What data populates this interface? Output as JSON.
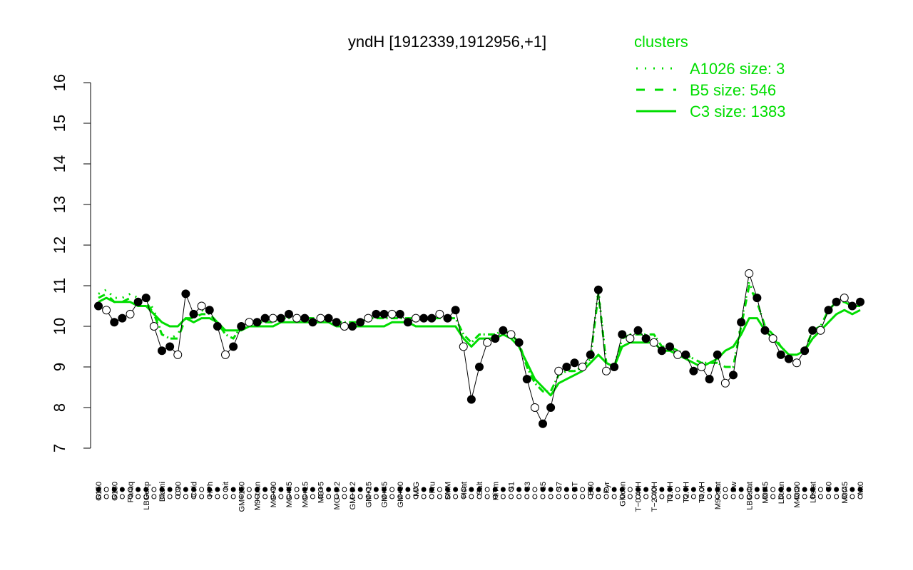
{
  "chart_data": {
    "type": "line",
    "title": "yndH [1912339,1912956,+1]",
    "xlabel": "",
    "ylabel": "",
    "ylim": [
      7,
      16
    ],
    "y_ticks": [
      "7",
      "8",
      "9",
      "10",
      "11",
      "12",
      "13",
      "14",
      "15",
      "16"
    ],
    "grid": false,
    "x_tick_labels": [
      "G150",
      "G135",
      "G180",
      "H2O2",
      "Paraq",
      "Oxctl",
      "LBGexp",
      "dia15",
      "Diami",
      "dia5",
      "C90",
      "C30",
      "Cold",
      "LPh",
      "HPh",
      "aero",
      "nit",
      "ferm",
      "GM+150",
      "MG+150",
      "M9–tran",
      "MG+120",
      "MG+90",
      "MG+60",
      "MG+45",
      "MG+25",
      "MG+15",
      "MG+10",
      "MG+5",
      "M9–exp",
      "MG−0.2",
      "Glucon",
      "GM−0.2",
      "GM+10",
      "GM+15",
      "GM+25",
      "GM+45",
      "GM+60",
      "GM+90",
      "GM+120",
      "M/G",
      "Mal",
      "Fru",
      "Glu",
      "SMM",
      "BMM",
      "Heat",
      "Etha",
      "Salt",
      "Gly",
      "HiTm",
      "HiOs",
      "S1",
      "S2",
      "S3",
      "S4",
      "S5",
      "S6",
      "S7",
      "S8",
      "BT",
      "B36",
      "B60",
      "LoTm",
      "Pyr",
      "G/S",
      "Glucon",
      "SMMPr",
      "T−0.40H",
      "T−1.10H",
      "T−2.40H",
      "T0.30H",
      "T1.0H",
      "T1.30H",
      "T2.0H",
      "T3.0H",
      "T4.0H",
      "T5.0H",
      "M9–stat",
      "BC",
      "Sw",
      "LPhT",
      "LBGstat",
      "LBGtran",
      "M0t45",
      "M40t45",
      "Lbtran",
      "Mt0",
      "M40t90",
      "M0t90",
      "Lbstat",
      "BI",
      "S0",
      "dia0",
      "M0t45",
      "Lbexp",
      "Mt0"
    ],
    "series": [
      {
        "name": "A1026 size: 3",
        "style": "dotted",
        "color": "#00dd00",
        "values": [
          10.8,
          10.9,
          10.7,
          10.7,
          10.8,
          10.7,
          10.7,
          10.4,
          9.8,
          9.7,
          9.8,
          10.2,
          10.2,
          10.4,
          10.3,
          10.1,
          9.8,
          9.7,
          10.0,
          10.1,
          10.1,
          10.1,
          10.1,
          10.2,
          10.2,
          10.2,
          10.2,
          10.2,
          10.2,
          10.2,
          10.1,
          10.1,
          10.1,
          10.1,
          10.2,
          10.2,
          10.2,
          10.2,
          10.2,
          10.2,
          10.2,
          10.2,
          10.2,
          10.2,
          10.2,
          10.2,
          9.8,
          9.6,
          9.8,
          9.8,
          9.8,
          9.9,
          9.8,
          9.6,
          9.0,
          8.6,
          8.4,
          8.4,
          8.8,
          8.9,
          8.9,
          9.0,
          9.2,
          10.9,
          9.1,
          9.0,
          9.7,
          9.8,
          9.8,
          9.8,
          9.8,
          9.5,
          9.5,
          9.4,
          9.3,
          9.2,
          9.1,
          9.1,
          9.1,
          9.0,
          9.0,
          10.1,
          11.1,
          10.6,
          10.0,
          9.8,
          9.5,
          9.3,
          9.3,
          9.4,
          9.9,
          10.0,
          10.4,
          10.6,
          10.6,
          10.5,
          10.5
        ]
      },
      {
        "name": "B5 size: 546",
        "style": "dashed",
        "color": "#00dd00",
        "values": [
          10.7,
          10.8,
          10.6,
          10.6,
          10.7,
          10.6,
          10.6,
          10.3,
          9.8,
          9.7,
          9.7,
          10.2,
          10.2,
          10.3,
          10.3,
          10.1,
          9.8,
          9.7,
          10.0,
          10.1,
          10.1,
          10.1,
          10.1,
          10.2,
          10.2,
          10.2,
          10.2,
          10.2,
          10.2,
          10.2,
          10.1,
          10.1,
          10.1,
          10.1,
          10.2,
          10.2,
          10.2,
          10.2,
          10.2,
          10.2,
          10.2,
          10.2,
          10.2,
          10.2,
          10.2,
          10.2,
          9.8,
          9.6,
          9.8,
          9.8,
          9.8,
          9.9,
          9.8,
          9.6,
          9.0,
          8.6,
          8.4,
          8.4,
          8.8,
          8.9,
          8.9,
          9.0,
          9.2,
          10.8,
          9.1,
          9.0,
          9.7,
          9.8,
          9.8,
          9.8,
          9.8,
          9.5,
          9.5,
          9.4,
          9.3,
          9.2,
          9.1,
          9.1,
          9.1,
          9.0,
          9.0,
          10.0,
          11.0,
          10.6,
          10.0,
          9.8,
          9.5,
          9.3,
          9.3,
          9.4,
          9.9,
          10.0,
          10.4,
          10.6,
          10.6,
          10.5,
          10.5
        ]
      },
      {
        "name": "C3 size: 1383",
        "style": "solid",
        "color": "#00dd00",
        "values": [
          10.6,
          10.7,
          10.6,
          10.6,
          10.6,
          10.5,
          10.5,
          10.3,
          10.1,
          10.0,
          10.0,
          10.2,
          10.1,
          10.2,
          10.2,
          10.1,
          9.9,
          9.9,
          9.9,
          10.0,
          10.0,
          10.0,
          10.0,
          10.1,
          10.1,
          10.1,
          10.1,
          10.1,
          10.1,
          10.1,
          10.0,
          10.0,
          10.0,
          10.0,
          10.0,
          10.0,
          10.0,
          10.1,
          10.1,
          10.1,
          10.0,
          10.0,
          10.0,
          10.0,
          10.0,
          10.0,
          9.7,
          9.5,
          9.7,
          9.7,
          9.7,
          9.8,
          9.7,
          9.5,
          9.1,
          8.7,
          8.5,
          8.3,
          8.6,
          8.7,
          8.8,
          8.9,
          9.1,
          9.3,
          9.1,
          9.0,
          9.5,
          9.6,
          9.6,
          9.6,
          9.6,
          9.4,
          9.4,
          9.3,
          9.2,
          9.1,
          9.0,
          9.1,
          9.2,
          9.4,
          9.5,
          9.8,
          10.2,
          10.2,
          9.9,
          9.7,
          9.5,
          9.3,
          9.3,
          9.4,
          9.7,
          9.9,
          10.1,
          10.3,
          10.4,
          10.3,
          10.4
        ]
      },
      {
        "name": "yndH",
        "style": "points",
        "color": "#000000",
        "values": [
          10.5,
          10.4,
          10.1,
          10.2,
          10.3,
          10.6,
          10.7,
          10.0,
          9.4,
          9.5,
          9.3,
          10.8,
          10.3,
          10.5,
          10.4,
          10.0,
          9.3,
          9.5,
          10.0,
          10.1,
          10.1,
          10.2,
          10.2,
          10.2,
          10.3,
          10.2,
          10.2,
          10.1,
          10.2,
          10.2,
          10.1,
          10.0,
          10.0,
          10.1,
          10.2,
          10.3,
          10.3,
          10.3,
          10.3,
          10.1,
          10.2,
          10.2,
          10.2,
          10.3,
          10.2,
          10.4,
          9.5,
          8.2,
          9.0,
          9.6,
          9.7,
          9.9,
          9.8,
          9.6,
          8.7,
          8.0,
          7.6,
          8.0,
          8.9,
          9.0,
          9.1,
          9.0,
          9.3,
          10.9,
          8.9,
          9.0,
          9.8,
          9.7,
          9.9,
          9.7,
          9.6,
          9.4,
          9.5,
          9.3,
          9.3,
          8.9,
          9.0,
          8.7,
          9.3,
          8.6,
          8.8,
          10.1,
          11.3,
          10.7,
          9.9,
          9.7,
          9.3,
          9.2,
          9.1,
          9.4,
          9.9,
          9.9,
          10.4,
          10.6,
          10.7,
          10.5,
          10.6
        ]
      }
    ],
    "legend": {
      "title": "clusters",
      "position": "top-right",
      "entries": [
        "A1026 size: 3",
        "B5 size: 546",
        "C3 size: 1383"
      ],
      "color": "#00dd00"
    }
  }
}
